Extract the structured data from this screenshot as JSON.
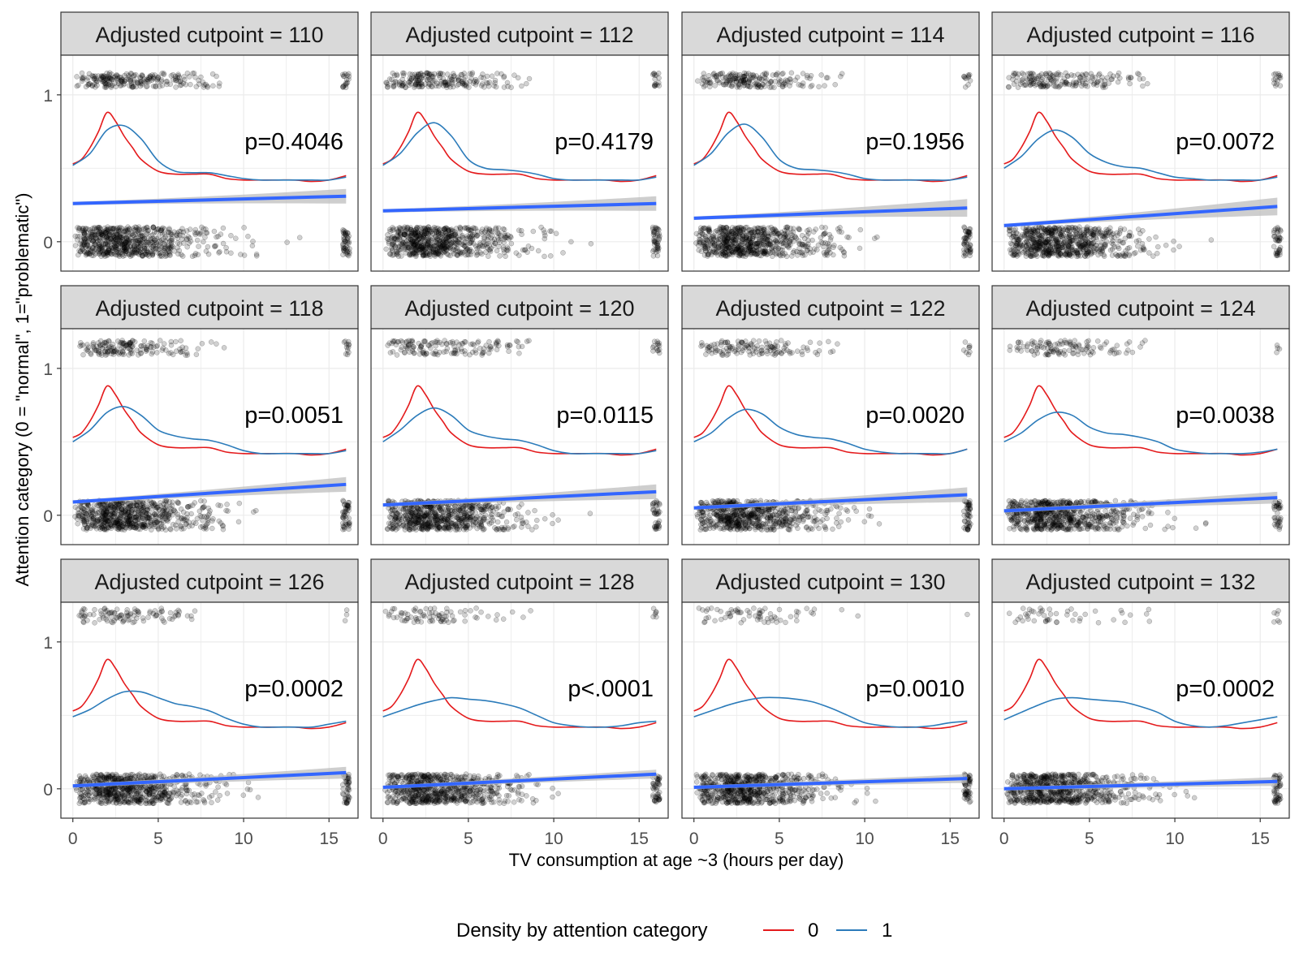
{
  "chart_data": {
    "type": "scatter",
    "layout": "facet-grid 3x4",
    "xlabel": "TV consumption at age ~3 (hours per day)",
    "ylabel": "Attention category (0 = \"normal\", 1=\"problematic\")",
    "xlim": [
      -0.7,
      16.7
    ],
    "ylim": [
      -0.2,
      1.27
    ],
    "x_ticks": [
      0,
      5,
      10,
      15
    ],
    "y_ticks": [
      0,
      1
    ],
    "grid": true,
    "legend": {
      "placement": "bottom",
      "title": "Density by attention category",
      "entries": [
        {
          "label": "0",
          "color": "#e41a1c"
        },
        {
          "label": "1",
          "color": "#2b7bba"
        }
      ]
    },
    "colors": {
      "density_0": "#e41a1c",
      "density_1": "#2b7bba",
      "regression_line": "#3366ff",
      "confidence_band": "#bdbdbd",
      "points": "#000000",
      "strip": "#d9d9d9"
    },
    "density_0": {
      "x": [
        0,
        0.5,
        1,
        1.5,
        2,
        2.5,
        3,
        3.5,
        4,
        5,
        6,
        7,
        8,
        9,
        10,
        11,
        12,
        13,
        14,
        15,
        16
      ],
      "y": [
        0.53,
        0.56,
        0.64,
        0.75,
        0.88,
        0.82,
        0.72,
        0.64,
        0.56,
        0.48,
        0.46,
        0.46,
        0.46,
        0.43,
        0.42,
        0.42,
        0.42,
        0.42,
        0.41,
        0.42,
        0.45
      ]
    },
    "panels": [
      {
        "title": "Adjusted cutpoint = 110",
        "p_label": "p=0.4046",
        "reg_line": {
          "y_start": 0.26,
          "y_end": 0.31
        },
        "ci_halfwidth_end": 0.05,
        "density_1": {
          "x": [
            0,
            1,
            2,
            3,
            4,
            5,
            6,
            7,
            8,
            9,
            10,
            11,
            12,
            13,
            14,
            15,
            16
          ],
          "y": [
            0.52,
            0.6,
            0.76,
            0.79,
            0.7,
            0.55,
            0.48,
            0.47,
            0.47,
            0.45,
            0.43,
            0.42,
            0.42,
            0.42,
            0.42,
            0.42,
            0.44
          ]
        }
      },
      {
        "title": "Adjusted cutpoint = 112",
        "p_label": "p=0.4179",
        "reg_line": {
          "y_start": 0.21,
          "y_end": 0.26
        },
        "ci_halfwidth_end": 0.05,
        "density_1": {
          "x": [
            0,
            1,
            2,
            3,
            4,
            5,
            6,
            7,
            8,
            9,
            10,
            11,
            12,
            13,
            14,
            15,
            16
          ],
          "y": [
            0.52,
            0.6,
            0.74,
            0.81,
            0.72,
            0.56,
            0.5,
            0.49,
            0.48,
            0.46,
            0.43,
            0.42,
            0.42,
            0.42,
            0.42,
            0.42,
            0.44
          ]
        }
      },
      {
        "title": "Adjusted cutpoint = 114",
        "p_label": "p=0.1956",
        "reg_line": {
          "y_start": 0.16,
          "y_end": 0.23
        },
        "ci_halfwidth_end": 0.06,
        "density_1": {
          "x": [
            0,
            1,
            2,
            3,
            4,
            5,
            6,
            7,
            8,
            9,
            10,
            11,
            12,
            13,
            14,
            15,
            16
          ],
          "y": [
            0.52,
            0.6,
            0.74,
            0.8,
            0.71,
            0.56,
            0.5,
            0.49,
            0.48,
            0.46,
            0.43,
            0.42,
            0.42,
            0.42,
            0.42,
            0.42,
            0.44
          ]
        }
      },
      {
        "title": "Adjusted cutpoint = 116",
        "p_label": "p=0.0072",
        "reg_line": {
          "y_start": 0.11,
          "y_end": 0.24
        },
        "ci_halfwidth_end": 0.06,
        "density_1": {
          "x": [
            0,
            1,
            2,
            3,
            4,
            5,
            6,
            7,
            8,
            9,
            10,
            11,
            12,
            13,
            14,
            15,
            16
          ],
          "y": [
            0.5,
            0.58,
            0.7,
            0.76,
            0.71,
            0.6,
            0.54,
            0.51,
            0.5,
            0.47,
            0.44,
            0.43,
            0.42,
            0.42,
            0.42,
            0.42,
            0.44
          ]
        }
      },
      {
        "title": "Adjusted cutpoint = 118",
        "p_label": "p=0.0051",
        "reg_line": {
          "y_start": 0.09,
          "y_end": 0.21
        },
        "ci_halfwidth_end": 0.05,
        "density_1": {
          "x": [
            0,
            1,
            2,
            3,
            4,
            5,
            6,
            7,
            8,
            9,
            10,
            11,
            12,
            13,
            14,
            15,
            16
          ],
          "y": [
            0.5,
            0.58,
            0.7,
            0.74,
            0.68,
            0.58,
            0.54,
            0.52,
            0.51,
            0.48,
            0.44,
            0.42,
            0.42,
            0.42,
            0.42,
            0.42,
            0.44
          ]
        }
      },
      {
        "title": "Adjusted cutpoint = 120",
        "p_label": "p=0.0115",
        "reg_line": {
          "y_start": 0.07,
          "y_end": 0.16
        },
        "ci_halfwidth_end": 0.05,
        "density_1": {
          "x": [
            0,
            1,
            2,
            3,
            4,
            5,
            6,
            7,
            8,
            9,
            10,
            11,
            12,
            13,
            14,
            15,
            16
          ],
          "y": [
            0.5,
            0.58,
            0.68,
            0.73,
            0.68,
            0.58,
            0.54,
            0.52,
            0.51,
            0.48,
            0.44,
            0.42,
            0.42,
            0.42,
            0.42,
            0.42,
            0.44
          ]
        }
      },
      {
        "title": "Adjusted cutpoint = 122",
        "p_label": "p=0.0020",
        "reg_line": {
          "y_start": 0.05,
          "y_end": 0.14
        },
        "ci_halfwidth_end": 0.05,
        "density_1": {
          "x": [
            0,
            1,
            2,
            3,
            4,
            5,
            6,
            7,
            8,
            9,
            10,
            11,
            12,
            13,
            14,
            15,
            16
          ],
          "y": [
            0.5,
            0.56,
            0.66,
            0.72,
            0.69,
            0.6,
            0.55,
            0.53,
            0.52,
            0.49,
            0.45,
            0.43,
            0.42,
            0.42,
            0.42,
            0.42,
            0.45
          ]
        }
      },
      {
        "title": "Adjusted cutpoint = 124",
        "p_label": "p=0.0038",
        "reg_line": {
          "y_start": 0.03,
          "y_end": 0.12
        },
        "ci_halfwidth_end": 0.04,
        "density_1": {
          "x": [
            0,
            1,
            2,
            3,
            4,
            5,
            6,
            7,
            8,
            9,
            10,
            11,
            12,
            13,
            14,
            15,
            16
          ],
          "y": [
            0.5,
            0.56,
            0.65,
            0.7,
            0.68,
            0.6,
            0.56,
            0.55,
            0.53,
            0.5,
            0.45,
            0.43,
            0.42,
            0.42,
            0.42,
            0.43,
            0.45
          ]
        }
      },
      {
        "title": "Adjusted cutpoint = 126",
        "p_label": "p=0.0002",
        "reg_line": {
          "y_start": 0.02,
          "y_end": 0.11
        },
        "ci_halfwidth_end": 0.04,
        "density_1": {
          "x": [
            0,
            1,
            2,
            3,
            4,
            5,
            6,
            7,
            8,
            9,
            10,
            11,
            12,
            13,
            14,
            15,
            16
          ],
          "y": [
            0.49,
            0.54,
            0.61,
            0.66,
            0.66,
            0.62,
            0.58,
            0.56,
            0.53,
            0.48,
            0.44,
            0.42,
            0.42,
            0.42,
            0.42,
            0.44,
            0.46
          ]
        }
      },
      {
        "title": "Adjusted cutpoint = 128",
        "p_label": "p<.0001",
        "reg_line": {
          "y_start": 0.01,
          "y_end": 0.1
        },
        "ci_halfwidth_end": 0.03,
        "density_1": {
          "x": [
            0,
            1,
            2,
            3,
            4,
            5,
            6,
            7,
            8,
            9,
            10,
            11,
            12,
            13,
            14,
            15,
            16
          ],
          "y": [
            0.49,
            0.53,
            0.57,
            0.6,
            0.62,
            0.61,
            0.6,
            0.58,
            0.55,
            0.5,
            0.45,
            0.43,
            0.42,
            0.42,
            0.43,
            0.45,
            0.46
          ]
        }
      },
      {
        "title": "Adjusted cutpoint = 130",
        "p_label": "p=0.0010",
        "reg_line": {
          "y_start": 0.01,
          "y_end": 0.07
        },
        "ci_halfwidth_end": 0.03,
        "density_1": {
          "x": [
            0,
            1,
            2,
            3,
            4,
            5,
            6,
            7,
            8,
            9,
            10,
            11,
            12,
            13,
            14,
            15,
            16
          ],
          "y": [
            0.49,
            0.53,
            0.57,
            0.6,
            0.62,
            0.62,
            0.61,
            0.59,
            0.55,
            0.5,
            0.45,
            0.43,
            0.42,
            0.42,
            0.43,
            0.45,
            0.46
          ]
        }
      },
      {
        "title": "Adjusted cutpoint = 132",
        "p_label": "p=0.0002",
        "reg_line": {
          "y_start": 0,
          "y_end": 0.05
        },
        "ci_halfwidth_end": 0.03,
        "density_1": {
          "x": [
            0,
            1,
            2,
            3,
            4,
            5,
            6,
            7,
            8,
            9,
            10,
            11,
            12,
            13,
            14,
            15,
            16
          ],
          "y": [
            0.47,
            0.52,
            0.57,
            0.61,
            0.62,
            0.61,
            0.6,
            0.59,
            0.56,
            0.52,
            0.46,
            0.43,
            0.42,
            0.43,
            0.45,
            0.47,
            0.49
          ]
        }
      }
    ]
  }
}
